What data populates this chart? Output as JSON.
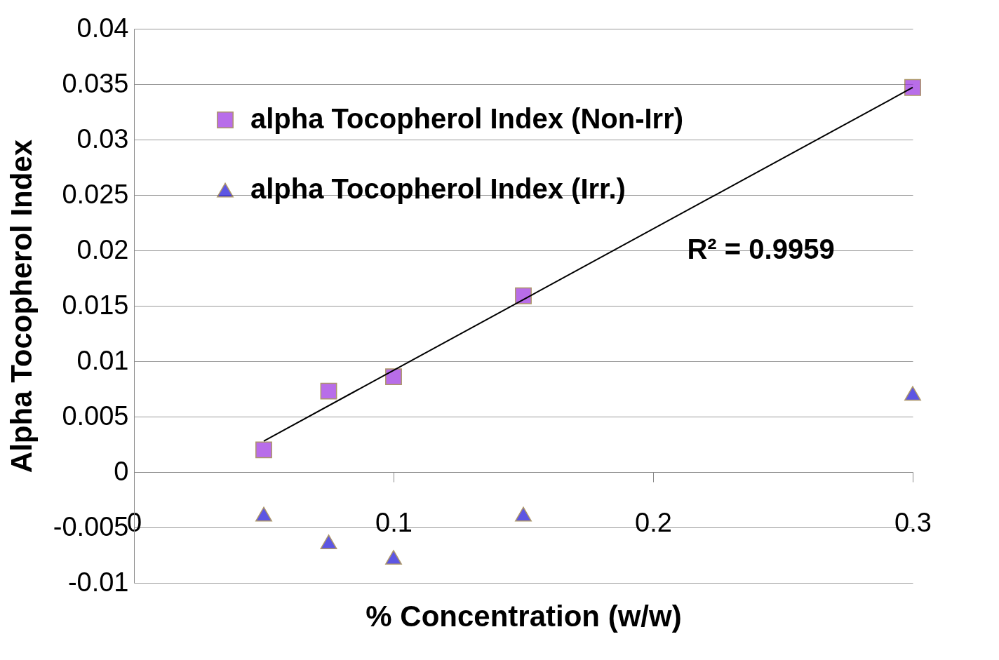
{
  "chart_data": {
    "type": "scatter",
    "xlabel": "% Concentration (w/w)",
    "ylabel": "Alpha Tocopherol Index",
    "x": [
      0.05,
      0.075,
      0.1,
      0.15,
      0.3
    ],
    "series": [
      {
        "name": "alpha Tocopherol Index (Non-Irr)",
        "color": "#9b30e0",
        "marker": "square",
        "values": [
          0.002,
          0.0073,
          0.0086,
          0.0159,
          0.0347
        ]
      },
      {
        "name": "alpha Tocopherol Index (Irr.)",
        "color": "#1a10d8",
        "marker": "triangle",
        "values": [
          -0.0038,
          -0.0063,
          -0.0077,
          -0.0038,
          0.0071
        ]
      },
      {
        "type": "line",
        "color": "#000000",
        "x": [
          0.05,
          0.3
        ],
        "values": [
          0.0028,
          0.0347
        ]
      }
    ],
    "xlim": [
      0,
      0.3
    ],
    "xticks": [
      0,
      0.1,
      0.2,
      0.3
    ],
    "ylim": [
      -0.01,
      0.04
    ],
    "yticks": [
      -0.01,
      -0.005,
      0,
      0.005,
      0.01,
      0.015,
      0.02,
      0.025,
      0.03,
      0.035,
      0.04
    ],
    "grid": "y",
    "legend": "top left",
    "annotations": [
      "R² = 0.9959"
    ]
  }
}
